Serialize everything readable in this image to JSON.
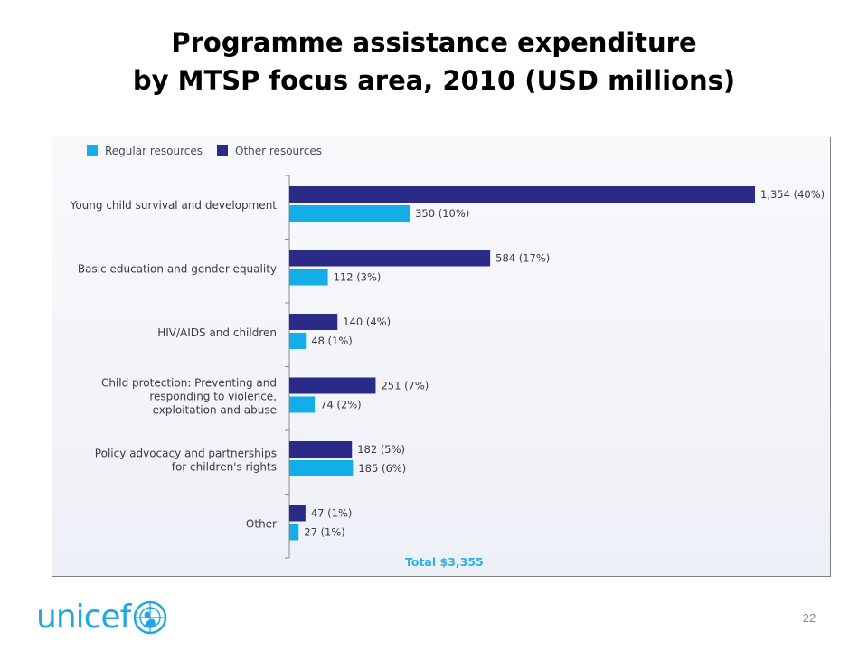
{
  "slide": {
    "title_line1": "Programme assistance expenditure",
    "title_line2": "by MTSP focus area, 2010 (USD millions)",
    "page_number": "22",
    "logo_text": "unicef"
  },
  "colors": {
    "regular": "#13aee8",
    "other": "#2a2a88",
    "total": "#29b0e6",
    "logo": "#1fa8e1"
  },
  "chart_data": {
    "type": "bar",
    "orientation": "horizontal",
    "categories": [
      [
        "Young child survival and development"
      ],
      [
        "Basic education and gender equality"
      ],
      [
        "HIV/AIDS and children"
      ],
      [
        "Child protection: Preventing and",
        "responding to violence,",
        "exploitation and abuse"
      ],
      [
        "Policy advocacy and partnerships",
        "for children's rights"
      ],
      [
        "Other"
      ]
    ],
    "series": [
      {
        "name": "Other resources",
        "values": [
          1354,
          584,
          140,
          251,
          182,
          47
        ],
        "labels": [
          "1,354 (40%)",
          "584 (17%)",
          "140 (4%)",
          "251 (7%)",
          "182 (5%)",
          "47 (1%)"
        ]
      },
      {
        "name": "Regular resources",
        "values": [
          350,
          112,
          48,
          74,
          185,
          27
        ],
        "labels": [
          "350 (10%)",
          "112 (3%)",
          "48 (1%)",
          "74 (2%)",
          "185 (6%)",
          "27 (1%)"
        ]
      }
    ],
    "legend": [
      {
        "name": "Regular resources",
        "series": 1
      },
      {
        "name": "Other resources",
        "series": 0
      }
    ],
    "legend_position": "top-left",
    "total_label": "Total $3,355",
    "xlim": [
      0,
      1354
    ],
    "grid": false
  }
}
